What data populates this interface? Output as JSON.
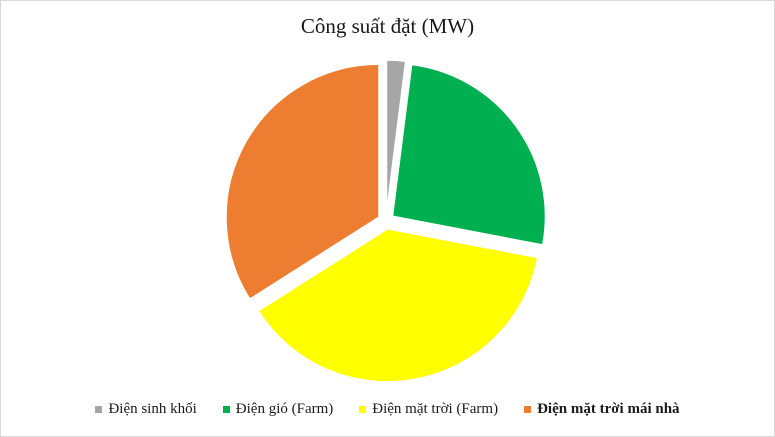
{
  "chart_data": {
    "type": "pie",
    "title": "Công suất đặt (MW)",
    "categories": [
      "Điện sinh khối",
      "Điện gió (Farm)",
      "Điện mặt trời (Farm)",
      "Điện mặt trời mái nhà"
    ],
    "values": [
      2,
      26,
      38,
      34
    ],
    "colors": [
      "#a6a6a6",
      "#00b050",
      "#ffff00",
      "#ed7d31"
    ],
    "exploded": true,
    "legend_position": "bottom",
    "legend_bold": [
      false,
      false,
      false,
      true
    ]
  }
}
